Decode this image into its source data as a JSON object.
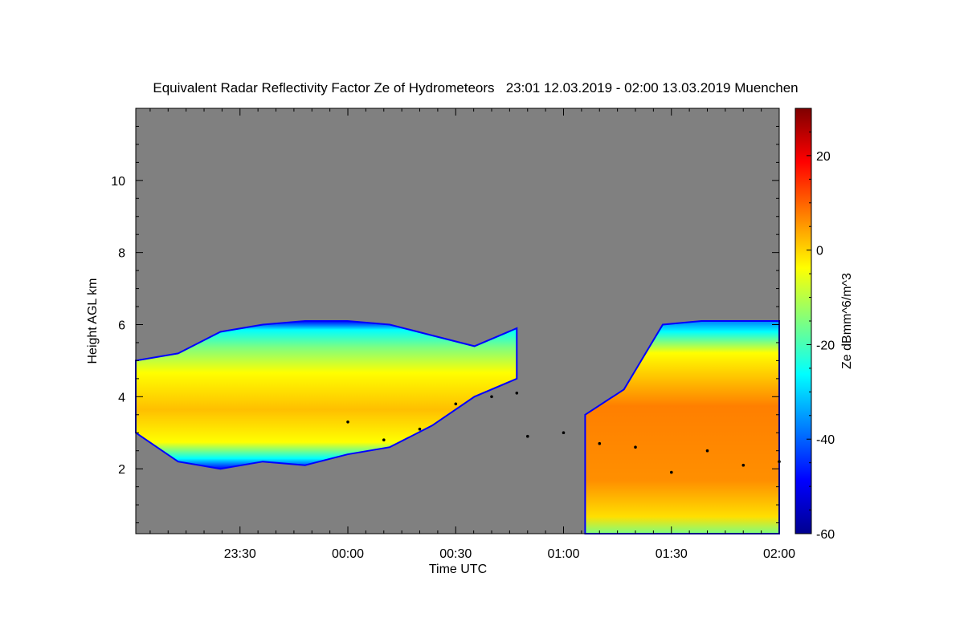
{
  "chart_data": {
    "type": "heatmap",
    "title": "Equivalent Radar Reflectivity Factor Ze of Hydrometeors   23:01 12.03.2019 - 02:00 13.03.2019 Muenchen",
    "xlabel": "Time UTC",
    "ylabel": "Height AGL km",
    "colorbar_label": "Ze dBmm^6/m^3",
    "x_range": [
      "23:01",
      "02:00"
    ],
    "ylim": [
      0.2,
      12
    ],
    "clim": [
      -60,
      30
    ],
    "x_ticks": [
      {
        "label": "23:30",
        "minutes": 29
      },
      {
        "label": "00:00",
        "minutes": 59
      },
      {
        "label": "00:30",
        "minutes": 89
      },
      {
        "label": "01:00",
        "minutes": 119
      },
      {
        "label": "01:30",
        "minutes": 149
      },
      {
        "label": "02:00",
        "minutes": 179
      }
    ],
    "y_ticks": [
      2,
      4,
      6,
      8,
      10
    ],
    "colorbar_ticks": [
      20,
      0,
      -20,
      -40,
      -60
    ],
    "background_color": "#808080",
    "colormap": [
      "#00008f",
      "#0000ff",
      "#007fff",
      "#00ffff",
      "#7fff7f",
      "#ffff00",
      "#ff7f00",
      "#ff0000",
      "#7f0000"
    ],
    "cloud_segments": [
      {
        "start": "23:01",
        "end": "00:47",
        "base_km": [
          3.0,
          2.2,
          2.0,
          2.2,
          2.1,
          2.4,
          2.6,
          3.2,
          4.0,
          4.5
        ],
        "top_km": [
          5.0,
          5.2,
          5.8,
          6.0,
          6.1,
          6.1,
          6.0,
          5.7,
          5.4,
          5.9
        ],
        "core_dbz": 8
      },
      {
        "start": "01:06",
        "end": "02:00",
        "base_km": [
          0.2,
          0.2,
          0.2,
          0.2,
          0.2,
          0.2
        ],
        "top_km": [
          3.5,
          4.2,
          6.0,
          6.1,
          6.1,
          6.1
        ],
        "core_dbz": 12
      }
    ],
    "cloud_base_line": {
      "times": [
        "00:00",
        "00:10",
        "00:20",
        "00:30",
        "00:40",
        "00:47",
        "00:50",
        "01:00",
        "01:10",
        "01:20",
        "01:30",
        "01:40",
        "01:50",
        "02:00"
      ],
      "heights_km": [
        3.3,
        2.8,
        3.1,
        3.8,
        4.0,
        4.1,
        2.9,
        3.0,
        2.7,
        2.6,
        1.9,
        2.5,
        2.1,
        2.2
      ]
    }
  }
}
